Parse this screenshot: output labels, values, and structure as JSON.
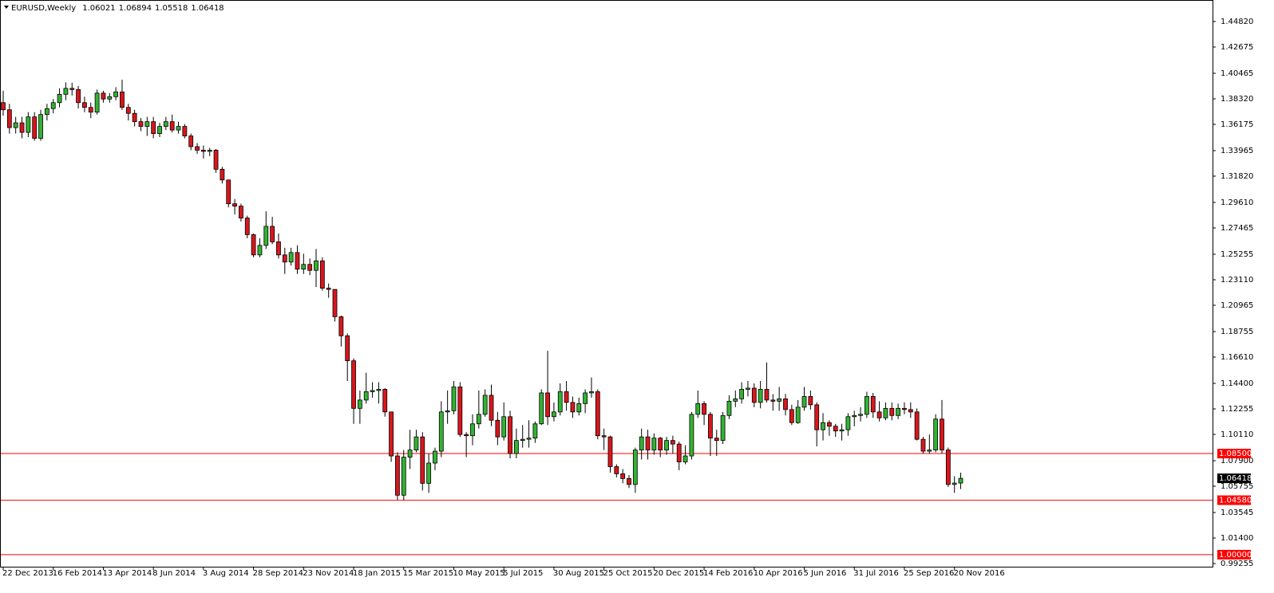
{
  "chart_data": {
    "type": "candlestick",
    "title": "EURUSD,Weekly",
    "categories": [
      "22 Dec 2013",
      null,
      null,
      null,
      null,
      null,
      null,
      null,
      "16 Feb 2014",
      null,
      null,
      null,
      null,
      null,
      null,
      null,
      "13 Apr 2014",
      null,
      null,
      null,
      null,
      null,
      null,
      null,
      "8 Jun 2014",
      null,
      null,
      null,
      null,
      null,
      null,
      null,
      "3 Aug 2014",
      null,
      null,
      null,
      null,
      null,
      null,
      null,
      "28 Sep 2014",
      null,
      null,
      null,
      null,
      null,
      null,
      null,
      "23 Nov 2014",
      null,
      null,
      null,
      null,
      null,
      null,
      null,
      "18 Jan 2015",
      null,
      null,
      null,
      null,
      null,
      null,
      null,
      "15 Mar 2015",
      null,
      null,
      null,
      null,
      null,
      null,
      null,
      "10 May 2015",
      null,
      null,
      null,
      null,
      null,
      null,
      null,
      "5 Jul 2015",
      null,
      null,
      null,
      null,
      null,
      null,
      null,
      "30 Aug 2015",
      null,
      null,
      null,
      null,
      null,
      null,
      null,
      "25 Oct 2015",
      null,
      null,
      null,
      null,
      null,
      null,
      null,
      "20 Dec 2015",
      null,
      null,
      null,
      null,
      null,
      null,
      null,
      "14 Feb 2016",
      null,
      null,
      null,
      null,
      null,
      null,
      null,
      "10 Apr 2016",
      null,
      null,
      null,
      null,
      null,
      null,
      null,
      "5 Jun 2016",
      null,
      null,
      null,
      null,
      null,
      null,
      null,
      "31 Jul 2016",
      null,
      null,
      null,
      null,
      null,
      null,
      null,
      "25 Sep 2016",
      null,
      null,
      null,
      null,
      null,
      null,
      null,
      "20 Nov 2016",
      null
    ],
    "open": [
      1.38,
      1.374,
      1.359,
      1.363,
      1.355,
      1.368,
      1.35,
      1.37,
      1.375,
      1.38,
      1.387,
      1.392,
      1.391,
      1.38,
      1.376,
      1.372,
      1.388,
      1.383,
      1.385,
      1.389,
      1.376,
      1.371,
      1.364,
      1.36,
      1.364,
      1.354,
      1.36,
      1.364,
      1.357,
      1.36,
      1.352,
      1.343,
      1.34,
      1.339,
      1.34,
      1.324,
      1.315,
      1.295,
      1.293,
      1.283,
      1.269,
      1.252,
      1.26,
      1.276,
      1.263,
      1.252,
      1.246,
      1.254,
      1.24,
      1.244,
      1.239,
      1.247,
      1.224,
      1.223,
      1.2,
      1.184,
      1.163,
      1.123,
      1.13,
      1.137,
      1.138,
      1.139,
      1.12,
      1.083,
      1.05,
      1.082,
      1.088,
      1.099,
      1.06,
      1.077,
      1.087,
      1.12,
      1.121,
      1.141,
      1.101,
      1.1,
      1.11,
      1.118,
      1.134,
      1.113,
      1.099,
      1.116,
      1.085,
      1.096,
      1.097,
      1.098,
      1.11,
      1.136,
      1.116,
      1.12,
      1.137,
      1.128,
      1.12,
      1.127,
      1.136,
      1.137,
      1.1,
      1.099,
      1.074,
      1.068,
      1.064,
      1.059,
      1.088,
      1.099,
      1.088,
      1.098,
      1.088,
      1.096,
      1.093,
      1.078,
      1.083,
      1.118,
      1.127,
      1.118,
      1.098,
      1.096,
      1.117,
      1.129,
      1.131,
      1.139,
      1.14,
      1.128,
      1.139,
      1.13,
      1.129,
      1.131,
      1.122,
      1.111,
      1.124,
      1.133,
      1.126,
      1.105,
      1.111,
      1.108,
      1.104,
      1.105,
      1.116,
      1.117,
      1.118,
      1.133,
      1.12,
      1.115,
      1.123,
      1.117,
      1.123,
      1.122,
      1.12,
      1.097,
      1.087,
      1.088,
      1.114,
      1.088,
      1.059,
      1.06021
    ],
    "high": [
      1.39,
      1.379,
      1.368,
      1.368,
      1.372,
      1.372,
      1.374,
      1.379,
      1.383,
      1.392,
      1.397,
      1.3967,
      1.394,
      1.385,
      1.38,
      1.391,
      1.39,
      1.388,
      1.393,
      1.3993,
      1.379,
      1.374,
      1.367,
      1.368,
      1.368,
      1.363,
      1.368,
      1.37,
      1.364,
      1.362,
      1.354,
      1.346,
      1.344,
      1.342,
      1.341,
      1.326,
      1.315,
      1.299,
      1.295,
      1.285,
      1.27,
      1.266,
      1.2886,
      1.284,
      1.27,
      1.258,
      1.258,
      1.26,
      1.253,
      1.249,
      1.257,
      1.25,
      1.228,
      1.223,
      1.201,
      1.186,
      1.165,
      1.138,
      1.153,
      1.145,
      1.145,
      1.14,
      1.12,
      1.086,
      1.088,
      1.105,
      1.105,
      1.103,
      1.085,
      1.09,
      1.129,
      1.138,
      1.146,
      1.145,
      1.103,
      1.118,
      1.138,
      1.139,
      1.143,
      1.12,
      1.128,
      1.121,
      1.106,
      1.109,
      1.113,
      1.112,
      1.139,
      1.1714,
      1.128,
      1.144,
      1.146,
      1.133,
      1.132,
      1.139,
      1.149,
      1.139,
      1.106,
      1.1,
      1.076,
      1.072,
      1.067,
      1.09,
      1.106,
      1.105,
      1.102,
      1.099,
      1.099,
      1.1,
      1.095,
      1.092,
      1.12,
      1.138,
      1.129,
      1.12,
      1.105,
      1.12,
      1.134,
      1.138,
      1.145,
      1.146,
      1.144,
      1.146,
      1.1616,
      1.135,
      1.141,
      1.135,
      1.126,
      1.13,
      1.141,
      1.138,
      1.128,
      1.119,
      1.113,
      1.11,
      1.11,
      1.119,
      1.121,
      1.124,
      1.137,
      1.136,
      1.129,
      1.128,
      1.128,
      1.127,
      1.128,
      1.128,
      1.123,
      1.099,
      1.101,
      1.118,
      1.13,
      1.09,
      1.066,
      1.06894
    ],
    "low": [
      1.369,
      1.354,
      1.354,
      1.35,
      1.351,
      1.348,
      1.348,
      1.365,
      1.371,
      1.376,
      1.382,
      1.386,
      1.375,
      1.372,
      1.367,
      1.37,
      1.38,
      1.38,
      1.382,
      1.374,
      1.365,
      1.36,
      1.356,
      1.352,
      1.35,
      1.351,
      1.357,
      1.355,
      1.354,
      1.35,
      1.34,
      1.337,
      1.333,
      1.335,
      1.321,
      1.312,
      1.292,
      1.286,
      1.28,
      1.266,
      1.25,
      1.25,
      1.257,
      1.261,
      1.249,
      1.236,
      1.243,
      1.236,
      1.236,
      1.235,
      1.225,
      1.222,
      1.216,
      1.196,
      1.175,
      1.146,
      1.11,
      1.11,
      1.127,
      1.132,
      1.127,
      1.116,
      1.078,
      1.0462,
      1.046,
      1.072,
      1.086,
      1.054,
      1.052,
      1.071,
      1.082,
      1.11,
      1.118,
      1.099,
      1.082,
      1.092,
      1.106,
      1.116,
      1.108,
      1.092,
      1.096,
      1.081,
      1.081,
      1.09,
      1.09,
      1.094,
      1.109,
      1.109,
      1.112,
      1.117,
      1.121,
      1.115,
      1.117,
      1.119,
      1.132,
      1.097,
      1.088,
      1.069,
      1.065,
      1.06,
      1.056,
      1.052,
      1.08,
      1.08,
      1.084,
      1.082,
      1.084,
      1.085,
      1.071,
      1.076,
      1.08,
      1.115,
      1.109,
      1.083,
      1.083,
      1.093,
      1.114,
      1.124,
      1.127,
      1.133,
      1.124,
      1.123,
      1.128,
      1.121,
      1.121,
      1.117,
      1.109,
      1.11,
      1.121,
      1.122,
      1.091,
      1.096,
      1.1,
      1.099,
      1.096,
      1.1,
      1.108,
      1.112,
      1.115,
      1.115,
      1.112,
      1.113,
      1.113,
      1.114,
      1.118,
      1.115,
      1.096,
      1.085,
      1.085,
      1.086,
      1.085,
      1.057,
      1.052,
      1.05518
    ],
    "close": [
      1.374,
      1.359,
      1.363,
      1.355,
      1.368,
      1.35,
      1.37,
      1.375,
      1.38,
      1.387,
      1.392,
      1.391,
      1.38,
      1.376,
      1.372,
      1.388,
      1.383,
      1.385,
      1.389,
      1.376,
      1.371,
      1.364,
      1.36,
      1.364,
      1.354,
      1.36,
      1.364,
      1.357,
      1.36,
      1.352,
      1.343,
      1.34,
      1.339,
      1.34,
      1.324,
      1.315,
      1.295,
      1.293,
      1.283,
      1.269,
      1.252,
      1.26,
      1.276,
      1.263,
      1.252,
      1.246,
      1.254,
      1.24,
      1.244,
      1.239,
      1.247,
      1.224,
      1.223,
      1.2,
      1.184,
      1.163,
      1.123,
      1.13,
      1.137,
      1.138,
      1.139,
      1.12,
      1.083,
      1.05,
      1.082,
      1.088,
      1.099,
      1.06,
      1.077,
      1.087,
      1.12,
      1.121,
      1.141,
      1.101,
      1.1,
      1.11,
      1.118,
      1.134,
      1.113,
      1.099,
      1.116,
      1.085,
      1.096,
      1.097,
      1.098,
      1.11,
      1.136,
      1.116,
      1.12,
      1.137,
      1.128,
      1.12,
      1.127,
      1.136,
      1.137,
      1.1,
      1.099,
      1.074,
      1.068,
      1.064,
      1.059,
      1.088,
      1.099,
      1.088,
      1.098,
      1.088,
      1.096,
      1.093,
      1.078,
      1.083,
      1.118,
      1.127,
      1.118,
      1.098,
      1.096,
      1.117,
      1.129,
      1.131,
      1.139,
      1.14,
      1.128,
      1.139,
      1.13,
      1.129,
      1.131,
      1.122,
      1.111,
      1.124,
      1.133,
      1.126,
      1.105,
      1.111,
      1.108,
      1.104,
      1.105,
      1.116,
      1.117,
      1.118,
      1.133,
      1.12,
      1.115,
      1.123,
      1.117,
      1.123,
      1.122,
      1.12,
      1.097,
      1.087,
      1.088,
      1.114,
      1.088,
      1.059,
      1.0602,
      1.06418
    ],
    "up_color": "#32b332",
    "down_color": "#d9161c",
    "ylim": [
      0.9899,
      1.4656
    ],
    "yticks": [
      {
        "value": 1.4482,
        "label": "1.44820"
      },
      1.42675,
      1.40465,
      {
        "value": 1.3832,
        "label": "1.38320"
      },
      1.36175,
      1.33965,
      {
        "value": 1.3182,
        "label": "1.31820"
      },
      {
        "value": 1.2961,
        "label": "1.29610"
      },
      1.27465,
      1.25255,
      {
        "value": 1.2311,
        "label": "1.23110"
      },
      1.20965,
      1.18755,
      {
        "value": 1.1661,
        "label": "1.16610"
      },
      {
        "value": 1.144,
        "label": "1.14400"
      },
      1.12255,
      {
        "value": 1.1011,
        "label": "1.10110"
      },
      {
        "value": 1.079,
        "label": "1.07900"
      },
      1.05755,
      1.03545,
      {
        "value": 1.014,
        "label": "1.01400"
      },
      0.99255
    ],
    "hlines": [
      {
        "value": 1.085,
        "label": "1.08500"
      },
      {
        "value": 1.0458,
        "label": "1.04580"
      },
      {
        "value": 1,
        "label": "1.00000"
      }
    ],
    "hline_color": "#ff0000",
    "grid": false
  }
}
